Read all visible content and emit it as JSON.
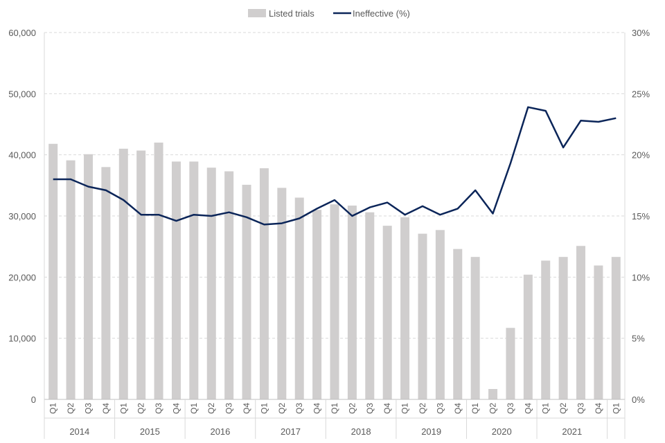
{
  "chart_data": {
    "type": "bar",
    "title": "",
    "xlabel": "",
    "ylabel": "",
    "legend_placement": "top-center",
    "grid": true,
    "categories": [
      "Q1",
      "Q2",
      "Q3",
      "Q4",
      "Q1",
      "Q2",
      "Q3",
      "Q4",
      "Q1",
      "Q2",
      "Q3",
      "Q4",
      "Q1",
      "Q2",
      "Q3",
      "Q4",
      "Q1",
      "Q2",
      "Q3",
      "Q4",
      "Q1",
      "Q2",
      "Q3",
      "Q4",
      "Q1",
      "Q2",
      "Q3",
      "Q4",
      "Q1",
      "Q2",
      "Q3",
      "Q4",
      "Q1"
    ],
    "year_groups": [
      {
        "label": "2014",
        "span": 4
      },
      {
        "label": "2015",
        "span": 4
      },
      {
        "label": "2016",
        "span": 4
      },
      {
        "label": "2017",
        "span": 4
      },
      {
        "label": "2018",
        "span": 4
      },
      {
        "label": "2019",
        "span": 4
      },
      {
        "label": "2020",
        "span": 4
      },
      {
        "label": "2021",
        "span": 4
      },
      {
        "label": "",
        "span": 1
      }
    ],
    "ylim_left": [
      0,
      60000
    ],
    "ylim_right": [
      0,
      30
    ],
    "left_ticks": [
      "0",
      "10,000",
      "20,000",
      "30,000",
      "40,000",
      "50,000",
      "60,000"
    ],
    "right_ticks": [
      "0%",
      "5%",
      "10%",
      "15%",
      "20%",
      "25%",
      "30%"
    ],
    "series": [
      {
        "name": "Listed trials",
        "kind": "bar",
        "axis": "left",
        "color": "#d0cece",
        "values": [
          41800,
          39100,
          40100,
          38000,
          41000,
          40700,
          42000,
          38900,
          38900,
          37900,
          37300,
          35100,
          37800,
          34600,
          33000,
          31000,
          31900,
          31700,
          30600,
          28400,
          29800,
          27100,
          27700,
          24600,
          23300,
          1700,
          11700,
          20400,
          22700,
          23300,
          25100,
          21900,
          23300
        ]
      },
      {
        "name": "Ineffective (%)",
        "kind": "line",
        "axis": "right",
        "color": "#0b2559",
        "values": [
          18.0,
          18.0,
          17.4,
          17.1,
          16.3,
          15.1,
          15.1,
          14.6,
          15.1,
          15.0,
          15.3,
          14.9,
          14.3,
          14.4,
          14.8,
          15.6,
          16.3,
          15.0,
          15.7,
          16.1,
          15.1,
          15.8,
          15.1,
          15.6,
          17.1,
          15.2,
          19.3,
          23.9,
          23.6,
          20.6,
          22.8,
          22.7,
          23.0
        ]
      }
    ]
  }
}
